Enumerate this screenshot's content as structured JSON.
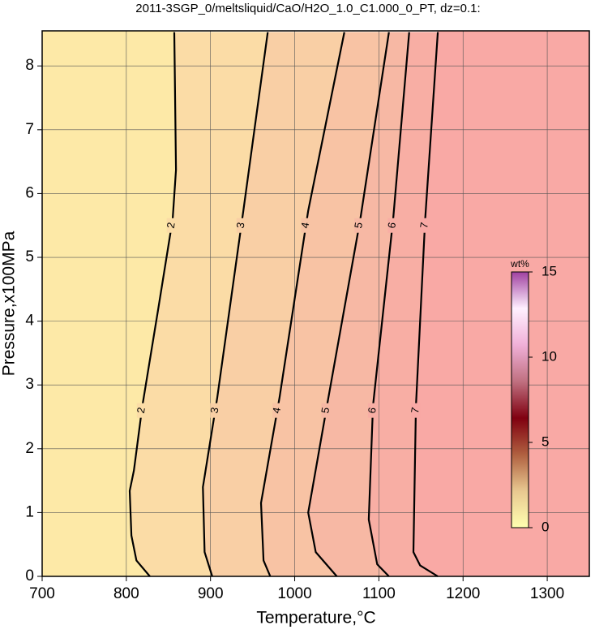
{
  "chart_data": {
    "type": "contour",
    "title": "2011-3SGP_0/meltsliquid/CaO/H2O_1.0_C1.000_0_PT, dz=0.1:",
    "x_label": "Temperature,°C",
    "y_label": "Pressure,x100MPa",
    "xlim": [
      700,
      1350
    ],
    "ylim": [
      0,
      8.55
    ],
    "xticks": [
      700,
      800,
      900,
      1000,
      1100,
      1200,
      1300
    ],
    "yticks": [
      0,
      1,
      2,
      3,
      4,
      5,
      6,
      7,
      8
    ],
    "grid": true,
    "fill_colors": [
      "#fde9a7",
      "#fbdca6",
      "#f9cfa5",
      "#f8c3a4",
      "#f7b8a4",
      "#f8aea4",
      "#f9a9a5",
      "#fca6a4"
    ],
    "contours": [
      {
        "level": 2,
        "x": [
          857,
          859,
          855,
          838,
          819,
          809,
          804,
          806,
          812,
          828
        ],
        "y": [
          8.53,
          6.37,
          5.6,
          4.2,
          2.67,
          1.66,
          1.34,
          0.64,
          0.25,
          0
        ]
      },
      {
        "level": 3,
        "x": [
          968,
          939,
          908,
          891,
          893,
          902
        ],
        "y": [
          8.53,
          5.73,
          2.8,
          1.4,
          0.38,
          0
        ]
      },
      {
        "level": 4,
        "x": [
          1059,
          1016,
          982,
          960,
          963,
          971
        ],
        "y": [
          8.53,
          5.73,
          2.8,
          1.15,
          0.25,
          0
        ]
      },
      {
        "level": 5,
        "x": [
          1112,
          1078,
          1040,
          1016,
          1025,
          1050
        ],
        "y": [
          8.53,
          5.6,
          2.8,
          1.0,
          0.38,
          0
        ]
      },
      {
        "level": 6,
        "x": [
          1136,
          1117,
          1093,
          1088,
          1098,
          1112
        ],
        "y": [
          8.53,
          5.6,
          2.67,
          0.89,
          0.19,
          0
        ]
      },
      {
        "level": 7,
        "x": [
          1170,
          1155,
          1144,
          1141,
          1149,
          1170
        ],
        "y": [
          8.53,
          5.6,
          2.67,
          0.38,
          0.17,
          0
        ]
      }
    ],
    "colorbar": {
      "label": "wt%",
      "lim": [
        0,
        15
      ],
      "ticks": [
        0,
        5,
        10,
        15
      ],
      "colors": [
        "#ffffb0",
        "#e8c890",
        "#b06040",
        "#800010",
        "#c07080",
        "#f0b0d8",
        "#fff0ff",
        "#a040a0"
      ]
    }
  }
}
